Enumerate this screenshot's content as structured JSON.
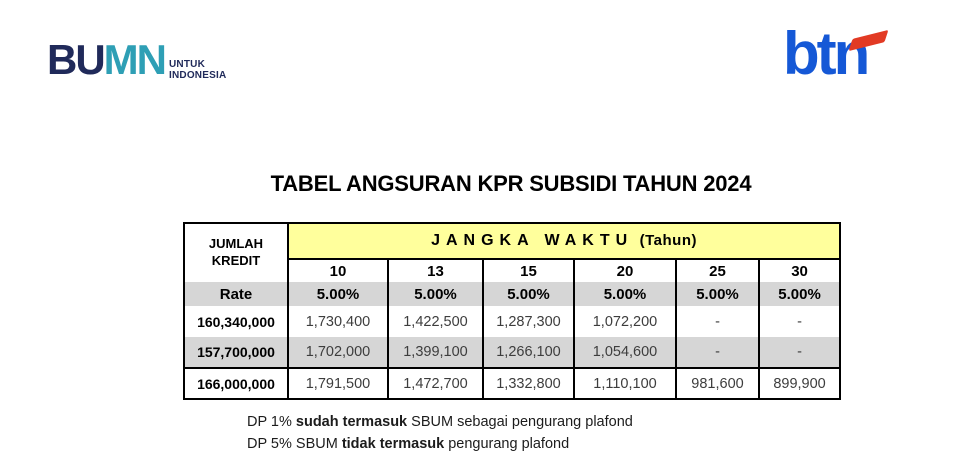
{
  "title": "TABEL ANGSURAN KPR SUBSIDI TAHUN 2024",
  "header": {
    "bumn_logo": {
      "text_bu": "BU",
      "text_mn": "MN",
      "tagline_line1": "UNTUK",
      "tagline_line2": "INDONESIA",
      "navy": "#202a5a",
      "teal": "#2e9fb5"
    },
    "btn_logo": {
      "text": "btn",
      "blue": "#1558d6",
      "red": "#e23a24"
    }
  },
  "table": {
    "corner_header": "JUMLAH\nKREDIT",
    "group_header_main": "JANGKA WAKTU",
    "group_header_unit": "(Tahun)",
    "rate_label": "Rate",
    "tenor_years": [
      "10",
      "13",
      "15",
      "20",
      "25",
      "30"
    ],
    "rates": [
      "5.00%",
      "5.00%",
      "5.00%",
      "5.00%",
      "5.00%",
      "5.00%"
    ],
    "rows": [
      {
        "jumlah_kredit": "160,340,000",
        "shaded": false,
        "installments": [
          "1,730,400",
          "1,422,500",
          "1,287,300",
          "1,072,200",
          "-",
          "-"
        ]
      },
      {
        "jumlah_kredit": "157,700,000",
        "shaded": true,
        "installments": [
          "1,702,000",
          "1,399,100",
          "1,266,100",
          "1,054,600",
          "-",
          "-"
        ]
      },
      {
        "jumlah_kredit": "166,000,000",
        "shaded": false,
        "installments": [
          "1,791,500",
          "1,472,700",
          "1,332,800",
          "1,110,100",
          "981,600",
          "899,900"
        ]
      }
    ],
    "colors": {
      "header_yellow": "#ffff9c",
      "row_gray": "#d6d6d6",
      "border": "#000000"
    }
  },
  "notes": [
    {
      "segments": [
        {
          "text": "DP 1% ",
          "bold": false
        },
        {
          "text": "sudah termasuk",
          "bold": true
        },
        {
          "text": " SBUM sebagai pengurang plafond",
          "bold": false
        }
      ]
    },
    {
      "segments": [
        {
          "text": "DP 5% SBUM ",
          "bold": false
        },
        {
          "text": "tidak termasuk",
          "bold": true
        },
        {
          "text": " pengurang plafond",
          "bold": false
        }
      ]
    }
  ]
}
